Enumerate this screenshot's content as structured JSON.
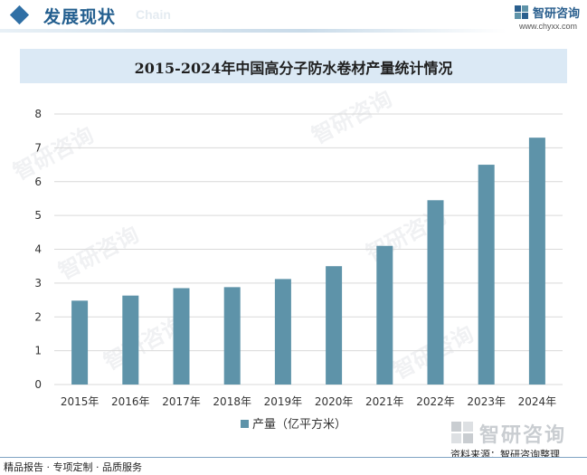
{
  "header": {
    "title": "发展现状",
    "chain": "Chain",
    "brand_name": "智研咨询",
    "brand_url": "www.chyxx.com"
  },
  "chart_data": {
    "type": "bar",
    "title": "2015-2024年中国高分子防水卷材产量统计情况",
    "categories": [
      "2015年",
      "2016年",
      "2017年",
      "2018年",
      "2019年",
      "2020年",
      "2021年",
      "2022年",
      "2023年",
      "2024年"
    ],
    "series": [
      {
        "name": "产量（亿平方米）",
        "values": [
          2.48,
          2.63,
          2.85,
          2.88,
          3.12,
          3.5,
          4.1,
          5.45,
          6.5,
          7.3
        ]
      }
    ],
    "ylim": [
      0,
      8
    ],
    "yticks": [
      "0",
      "1",
      "2",
      "3",
      "4",
      "5",
      "6",
      "7",
      "8"
    ],
    "grid": true,
    "legend": "bottom-center",
    "bar_color": "#5e93a9"
  },
  "watermark": {
    "text": "智研咨询"
  },
  "bottom_logo": {
    "text": "智研咨询"
  },
  "source": "资料来源：智研咨询整理",
  "footer": "精品报告 · 专项定制 · 品质服务",
  "colors": {
    "accent": "#245f8f",
    "title_bg": "#dbe9f5",
    "bar": "#5e93a9"
  }
}
